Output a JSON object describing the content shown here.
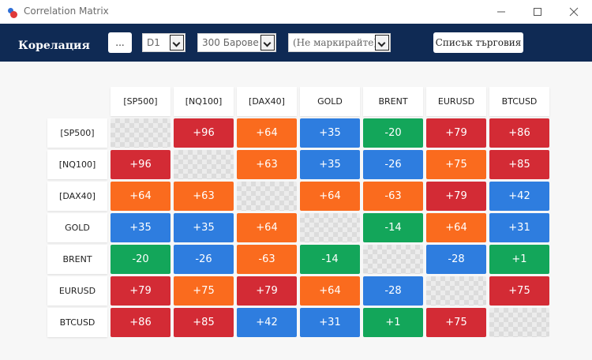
{
  "window": {
    "title": "Correlation Matrix"
  },
  "toolbar": {
    "label": "Корелация",
    "dots_label": "...",
    "timeframe": "D1",
    "bars": "300 Барове",
    "marker": "(Не маркирайте)",
    "trade_list_label": "Списък търговия"
  },
  "colors": {
    "red": "#d32b35",
    "orange": "#fa6b1e",
    "blue": "#2e7ddf",
    "green": "#13a65a",
    "toolbar": "#0f2a54"
  },
  "matrix": {
    "symbols": [
      "[SP500]",
      "[NQ100]",
      "[DAX40]",
      "GOLD",
      "BRENT",
      "EURUSD",
      "BTCUSD"
    ],
    "rows": [
      [
        null,
        "+96",
        "+64",
        "+35",
        "-20",
        "+79",
        "+86"
      ],
      [
        "+96",
        null,
        "+63",
        "+35",
        "-26",
        "+75",
        "+85"
      ],
      [
        "+64",
        "+63",
        null,
        "+64",
        "-63",
        "+79",
        "+42"
      ],
      [
        "+35",
        "+35",
        "+64",
        null,
        "-14",
        "+64",
        "+31"
      ],
      [
        "-20",
        "-26",
        "-63",
        "-14",
        null,
        "-28",
        "+1"
      ],
      [
        "+79",
        "+75",
        "+79",
        "+64",
        "-28",
        null,
        "+75"
      ],
      [
        "+86",
        "+85",
        "+42",
        "+31",
        "+1",
        "+75",
        null
      ]
    ],
    "cell_colors": [
      [
        null,
        "red",
        "orange",
        "blue",
        "green",
        "red",
        "red"
      ],
      [
        "red",
        null,
        "orange",
        "blue",
        "blue",
        "orange",
        "red"
      ],
      [
        "orange",
        "orange",
        null,
        "orange",
        "orange",
        "red",
        "blue"
      ],
      [
        "blue",
        "blue",
        "orange",
        null,
        "green",
        "orange",
        "blue"
      ],
      [
        "green",
        "blue",
        "orange",
        "green",
        null,
        "blue",
        "green"
      ],
      [
        "red",
        "orange",
        "red",
        "orange",
        "blue",
        null,
        "red"
      ],
      [
        "red",
        "red",
        "blue",
        "blue",
        "green",
        "red",
        null
      ]
    ]
  }
}
